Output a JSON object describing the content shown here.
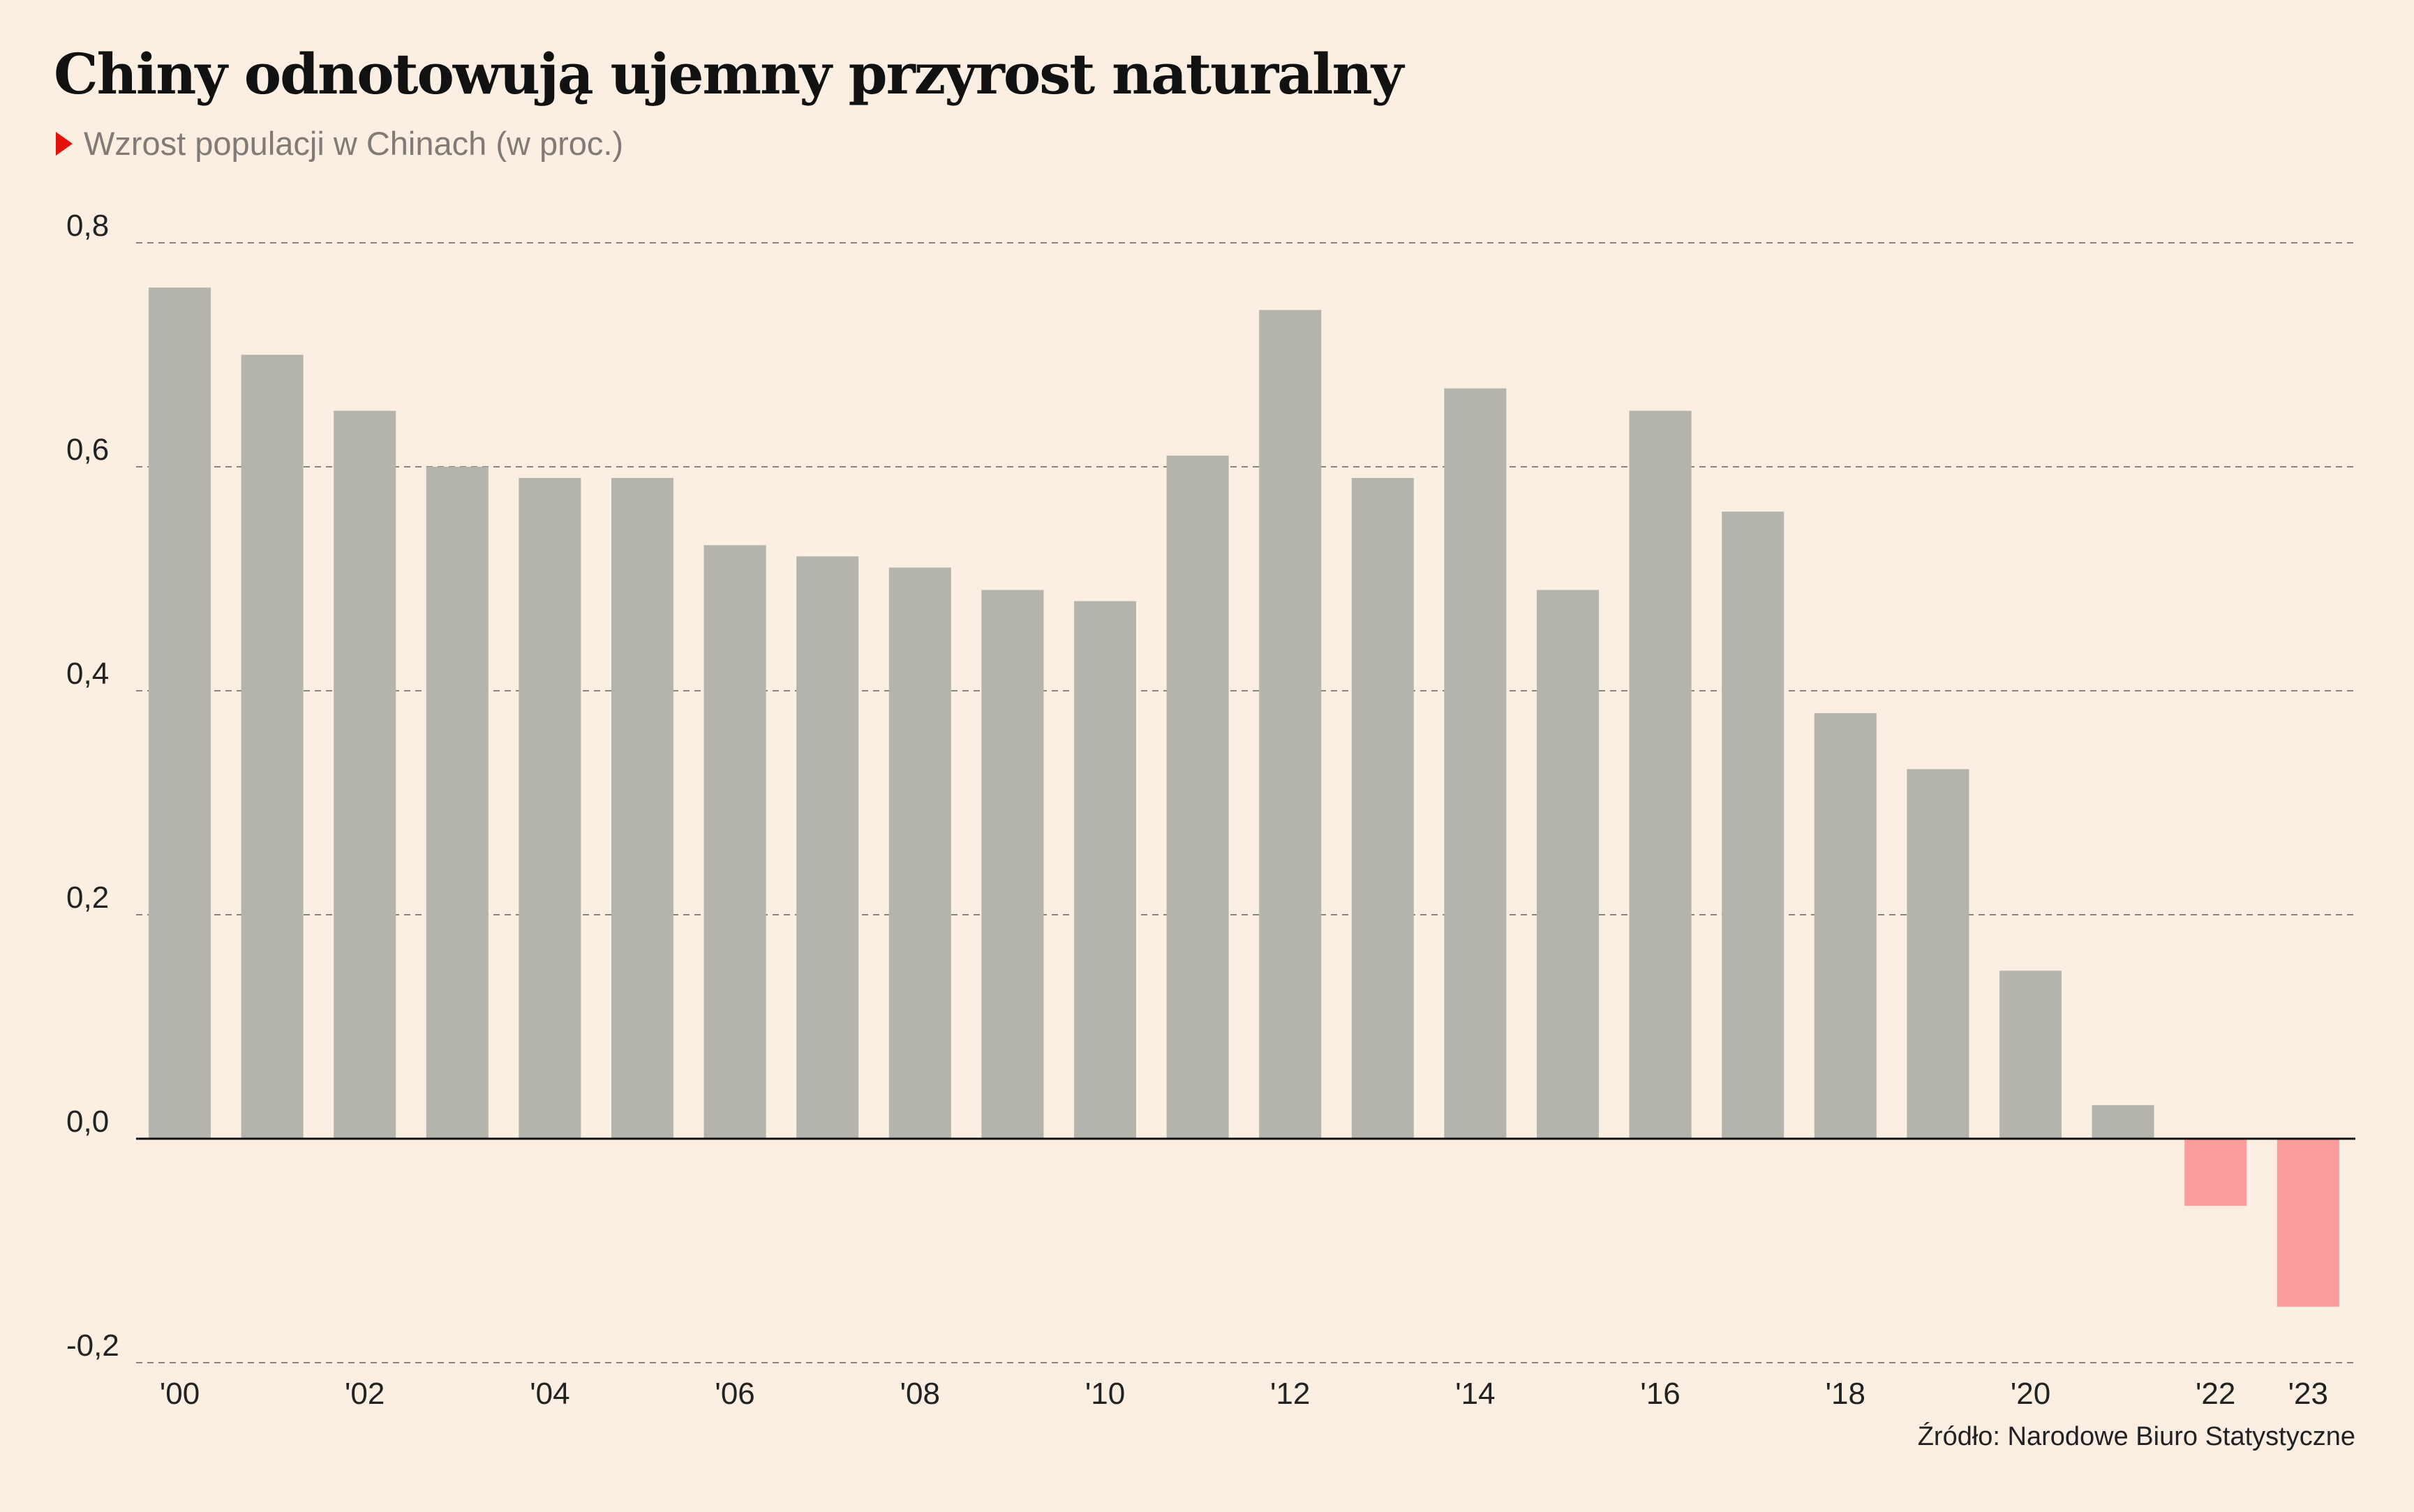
{
  "title": "Chiny odnotowują ujemny przyrost naturalny",
  "subtitle": "Wzrost populacji w Chinach (w proc.)",
  "source": "Źródło: Narodowe Biuro Statystyczne",
  "colors": {
    "background": "#fbeee2",
    "positive_bar": "#b5b4ac",
    "negative_bar": "#fc9c9c",
    "marker": "#e3120b",
    "gridline": "#8a8580",
    "zero_line": "#111111"
  },
  "chart_data": {
    "type": "bar",
    "title": "Chiny odnotowują ujemny przyrost naturalny",
    "subtitle": "Wzrost populacji w Chinach (w proc.)",
    "xlabel": "",
    "ylabel": "",
    "ylim": [
      -0.2,
      0.8
    ],
    "grid": true,
    "yticks": [
      -0.2,
      0.0,
      0.2,
      0.4,
      0.6,
      0.8
    ],
    "ytick_labels": [
      "-0,2",
      "0,0",
      "0,2",
      "0,4",
      "0,6",
      "0,8"
    ],
    "categories": [
      "2000",
      "2001",
      "2002",
      "2003",
      "2004",
      "2005",
      "2006",
      "2007",
      "2008",
      "2009",
      "2010",
      "2011",
      "2012",
      "2013",
      "2014",
      "2015",
      "2016",
      "2017",
      "2018",
      "2019",
      "2020",
      "2021",
      "2022",
      "2023"
    ],
    "xtick_labels": [
      "'00",
      "",
      "'02",
      "",
      "'04",
      "",
      "'06",
      "",
      "'08",
      "",
      "'10",
      "",
      "'12",
      "",
      "'14",
      "",
      "'16",
      "",
      "'18",
      "",
      "'20",
      "",
      "'22",
      "'23"
    ],
    "values": [
      0.76,
      0.7,
      0.65,
      0.6,
      0.59,
      0.59,
      0.53,
      0.52,
      0.51,
      0.49,
      0.48,
      0.61,
      0.74,
      0.59,
      0.67,
      0.49,
      0.65,
      0.56,
      0.38,
      0.33,
      0.15,
      0.03,
      -0.06,
      -0.15
    ]
  }
}
